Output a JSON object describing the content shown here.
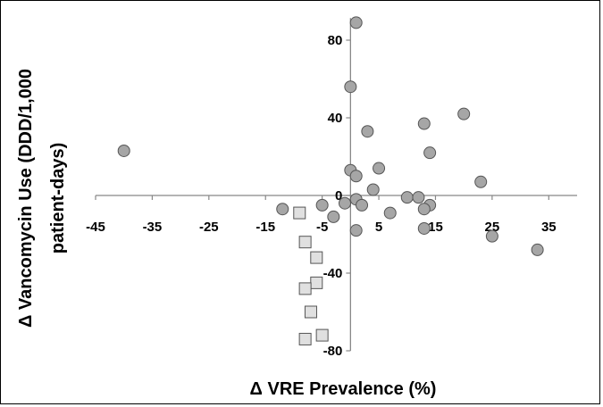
{
  "chart_data": {
    "type": "scatter",
    "title": "",
    "xlabel": "Δ VRE Prevalence (%)",
    "ylabel_line1": "Δ Vancomycin Use (DDD/1,000",
    "ylabel_line2": "patient-days)",
    "xlim": [
      -45,
      40
    ],
    "ylim": [
      -80,
      90
    ],
    "x_ticks": [
      -45,
      -35,
      -25,
      -15,
      -5,
      5,
      15,
      25,
      35
    ],
    "y_ticks": [
      -80,
      -40,
      0,
      40,
      80
    ],
    "grid": false,
    "legend": false,
    "series": [
      {
        "marker": "circle",
        "color": "#a6a6a6",
        "points": [
          [
            -40,
            23
          ],
          [
            1,
            89
          ],
          [
            0,
            56
          ],
          [
            3,
            33
          ],
          [
            13,
            37
          ],
          [
            20,
            42
          ],
          [
            14,
            22
          ],
          [
            0,
            13
          ],
          [
            5,
            14
          ],
          [
            1,
            10
          ],
          [
            23,
            7
          ],
          [
            4,
            3
          ],
          [
            1,
            -2
          ],
          [
            10,
            -1
          ],
          [
            12,
            -1
          ],
          [
            -1,
            -4
          ],
          [
            2,
            -5
          ],
          [
            14,
            -5
          ],
          [
            -12,
            -7
          ],
          [
            -5,
            -5
          ],
          [
            13,
            -7
          ],
          [
            7,
            -9
          ],
          [
            -3,
            -11
          ],
          [
            1,
            -18
          ],
          [
            13,
            -17
          ],
          [
            25,
            -21
          ],
          [
            33,
            -28
          ]
        ]
      },
      {
        "marker": "square",
        "color": "#e0e0e0",
        "points": [
          [
            -9,
            -9
          ],
          [
            -8,
            -24
          ],
          [
            -6,
            -32
          ],
          [
            -6,
            -45
          ],
          [
            -8,
            -48
          ],
          [
            -7,
            -60
          ],
          [
            -5,
            -72
          ],
          [
            -8,
            -74
          ]
        ]
      }
    ]
  }
}
